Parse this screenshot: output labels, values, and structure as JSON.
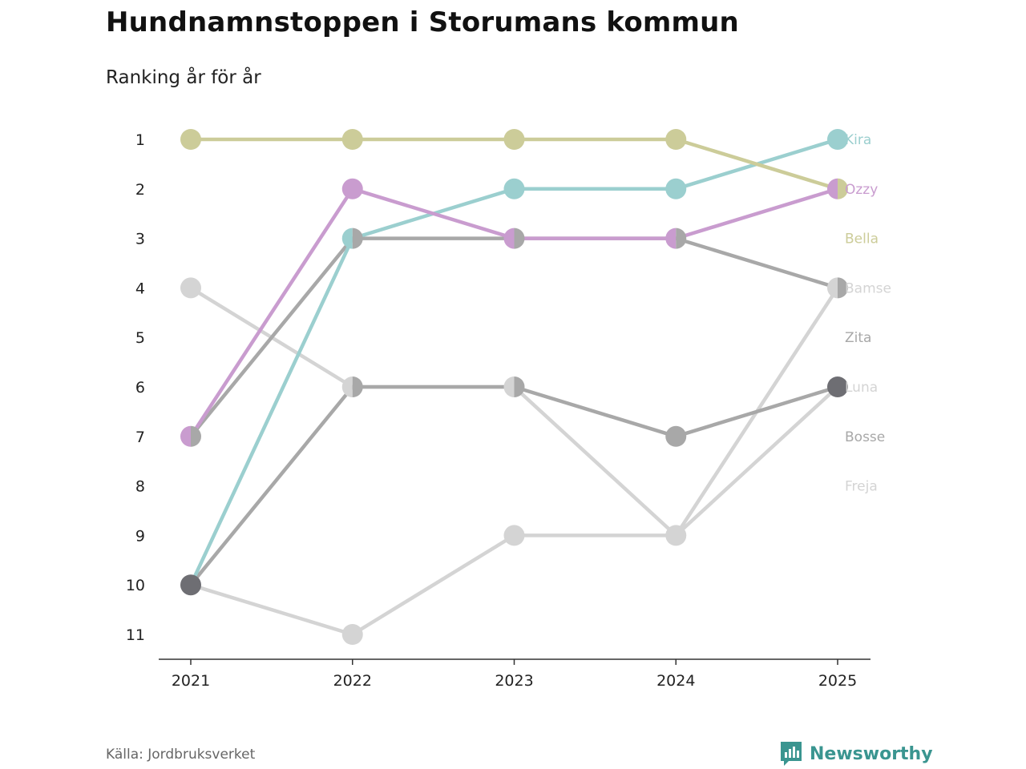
{
  "title": "Hundnamnstoppen i Storumans kommun",
  "subtitle": "Ranking år för år",
  "source": "Källa: Jordbruksverket",
  "brand": {
    "name": "Newsworthy",
    "icon": "newsworthy-logo-icon",
    "color": "#3a9590"
  },
  "chart_data": {
    "type": "line",
    "x": [
      "2021",
      "2022",
      "2023",
      "2024",
      "2025"
    ],
    "y_ticks": [
      1,
      2,
      3,
      4,
      5,
      6,
      7,
      8,
      9,
      10,
      11
    ],
    "ylim": [
      1,
      11
    ],
    "y_inverted": true,
    "grid": false,
    "series": [
      {
        "name": "Freja",
        "color": "#d4d4d4",
        "values": [
          10,
          11,
          9,
          9,
          6
        ],
        "label_rank": 8
      },
      {
        "name": "Luna",
        "color": "#d4d4d4",
        "values": [
          4,
          6,
          6,
          9,
          4
        ],
        "label_rank": 6
      },
      {
        "name": "Bamse",
        "color": "#d4d4d4",
        "values": [
          null,
          null,
          null,
          null,
          4
        ],
        "label_rank": 4
      },
      {
        "name": "Bosse",
        "color": "#a8a8a8",
        "values": [
          10,
          6,
          6,
          7,
          6
        ],
        "label_rank": 7
      },
      {
        "name": "Zita",
        "color": "#a8a8a8",
        "values": [
          7,
          3,
          3,
          3,
          4
        ],
        "label_rank": 5
      },
      {
        "name": "Kira",
        "color": "#9bcfcf",
        "values": [
          10,
          3,
          2,
          2,
          1
        ],
        "label_rank": 1
      },
      {
        "name": "Ozzy",
        "color": "#c99ccf",
        "values": [
          7,
          2,
          3,
          3,
          2
        ],
        "label_rank": 2
      },
      {
        "name": "Bella",
        "color": "#cccc99",
        "values": [
          1,
          1,
          1,
          1,
          2
        ],
        "label_rank": 3
      }
    ],
    "markers": [
      {
        "x": "2021",
        "rank": 1,
        "colors": [
          "#cccc99"
        ]
      },
      {
        "x": "2021",
        "rank": 4,
        "colors": [
          "#d4d4d4"
        ]
      },
      {
        "x": "2021",
        "rank": 7,
        "colors": [
          "#c99ccf",
          "#a8a8a8"
        ]
      },
      {
        "x": "2021",
        "rank": 10,
        "colors": [
          "#6e6e73"
        ]
      },
      {
        "x": "2022",
        "rank": 1,
        "colors": [
          "#cccc99"
        ]
      },
      {
        "x": "2022",
        "rank": 2,
        "colors": [
          "#c99ccf"
        ]
      },
      {
        "x": "2022",
        "rank": 3,
        "colors": [
          "#9bcfcf",
          "#a8a8a8"
        ]
      },
      {
        "x": "2022",
        "rank": 6,
        "colors": [
          "#d4d4d4",
          "#a8a8a8"
        ]
      },
      {
        "x": "2022",
        "rank": 11,
        "colors": [
          "#d4d4d4"
        ]
      },
      {
        "x": "2023",
        "rank": 1,
        "colors": [
          "#cccc99"
        ]
      },
      {
        "x": "2023",
        "rank": 2,
        "colors": [
          "#9bcfcf"
        ]
      },
      {
        "x": "2023",
        "rank": 3,
        "colors": [
          "#c99ccf",
          "#a8a8a8"
        ]
      },
      {
        "x": "2023",
        "rank": 6,
        "colors": [
          "#d4d4d4",
          "#a8a8a8"
        ]
      },
      {
        "x": "2023",
        "rank": 9,
        "colors": [
          "#d4d4d4"
        ]
      },
      {
        "x": "2024",
        "rank": 1,
        "colors": [
          "#cccc99"
        ]
      },
      {
        "x": "2024",
        "rank": 2,
        "colors": [
          "#9bcfcf"
        ]
      },
      {
        "x": "2024",
        "rank": 3,
        "colors": [
          "#c99ccf",
          "#a8a8a8"
        ]
      },
      {
        "x": "2024",
        "rank": 7,
        "colors": [
          "#a8a8a8"
        ]
      },
      {
        "x": "2024",
        "rank": 9,
        "colors": [
          "#d4d4d4"
        ]
      },
      {
        "x": "2025",
        "rank": 1,
        "colors": [
          "#9bcfcf"
        ]
      },
      {
        "x": "2025",
        "rank": 2,
        "colors": [
          "#c99ccf",
          "#cccc99"
        ]
      },
      {
        "x": "2025",
        "rank": 4,
        "colors": [
          "#d4d4d4",
          "#a8a8a8"
        ]
      },
      {
        "x": "2025",
        "rank": 6,
        "colors": [
          "#6e6e73"
        ]
      }
    ]
  }
}
